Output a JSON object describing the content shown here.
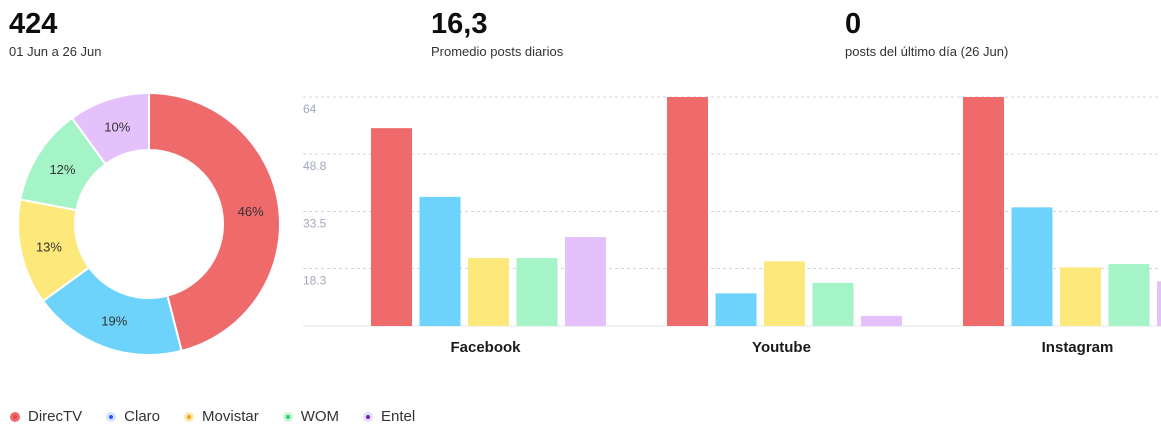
{
  "kpis": [
    {
      "value": "424",
      "label": "01 Jun a 26 Jun"
    },
    {
      "value": "16,3",
      "label": "Promedio posts diarios"
    },
    {
      "value": "0",
      "label": "posts del último día (26 Jun)"
    }
  ],
  "series_colors": {
    "DirecTV": "#ef6b6b",
    "Claro": "#6dd3fb",
    "Movistar": "#fde87c",
    "WOM": "#a4f4c8",
    "Entel": "#e4c1fb"
  },
  "legend": {
    "items": [
      {
        "label": "DirecTV",
        "dot": "#ef6b6b",
        "inner": "#e04a4a"
      },
      {
        "label": "Claro",
        "dot": "#d6e6ff",
        "inner": "#3050ff"
      },
      {
        "label": "Movistar",
        "dot": "#fde8b0",
        "inner": "#f2a51a"
      },
      {
        "label": "WOM",
        "dot": "#c7f5d7",
        "inner": "#2ecc71"
      },
      {
        "label": "Entel",
        "dot": "#e8dcf8",
        "inner": "#6a2aa8"
      }
    ]
  },
  "chart_data": [
    {
      "type": "pie",
      "categories": [
        "DirecTV",
        "Claro",
        "Movistar",
        "WOM",
        "Entel"
      ],
      "values": [
        46,
        19,
        13,
        12,
        10
      ],
      "labels": [
        "46%",
        "19%",
        "13%",
        "12%",
        "10%"
      ]
    },
    {
      "type": "bar",
      "categories": [
        "Facebook",
        "Youtube",
        "Instagram"
      ],
      "y_ticks": [
        "64",
        "48.8",
        "33.5",
        "18.3"
      ],
      "ylim": [
        3,
        64
      ],
      "grid": true,
      "series": [
        {
          "name": "DirecTV",
          "values": [
            55.7,
            64,
            64
          ]
        },
        {
          "name": "Claro",
          "values": [
            37.4,
            11.7,
            34.6
          ]
        },
        {
          "name": "Movistar",
          "values": [
            21.1,
            20.2,
            18.6
          ]
        },
        {
          "name": "WOM",
          "values": [
            21.1,
            14.5,
            19.5
          ]
        },
        {
          "name": "Entel",
          "values": [
            26.7,
            5.7,
            14.9
          ]
        }
      ]
    }
  ]
}
